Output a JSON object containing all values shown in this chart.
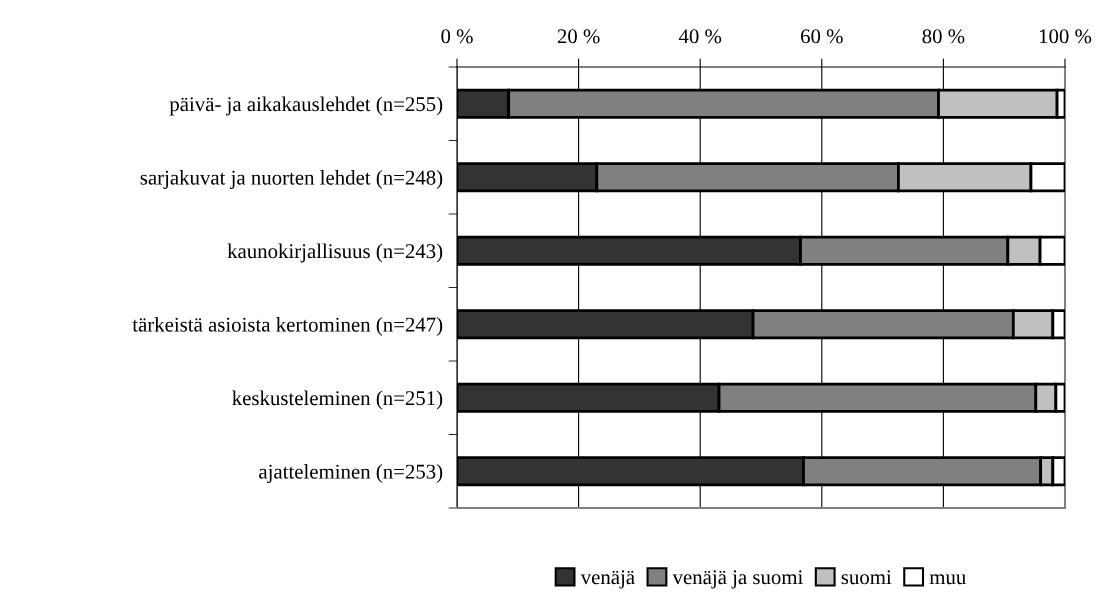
{
  "chart_data": {
    "type": "bar",
    "orientation": "horizontal",
    "stacked": true,
    "categories": [
      "päivä- ja aikakauslehdet (n=255)",
      "sarjakuvat ja nuorten lehdet (n=248)",
      "kaunokirjallisuus (n=243)",
      "tärkeistä asioista kertominen (n=247)",
      "keskusteleminen (n=251)",
      "ajatteleminen (n=253)"
    ],
    "series": [
      {
        "name": "venäjä",
        "color": "#333333",
        "values": [
          8.5,
          23.0,
          56.5,
          48.7,
          43.1,
          57.0
        ]
      },
      {
        "name": "venäjä ja suomi",
        "color": "#808080",
        "values": [
          70.7,
          49.6,
          34.1,
          42.8,
          52.1,
          39.0
        ]
      },
      {
        "name": "suomi",
        "color": "#c0c0c0",
        "values": [
          19.5,
          21.8,
          5.3,
          6.5,
          3.3,
          2.0
        ]
      },
      {
        "name": "muu",
        "color": "#ffffff",
        "values": [
          1.3,
          5.6,
          4.1,
          2.0,
          1.5,
          2.0
        ]
      }
    ],
    "xlim": [
      0,
      100
    ],
    "xticks": [
      {
        "value": 0,
        "label": "0 %"
      },
      {
        "value": 20,
        "label": "20 %"
      },
      {
        "value": 40,
        "label": "40 %"
      },
      {
        "value": 60,
        "label": "60 %"
      },
      {
        "value": 80,
        "label": "80 %"
      },
      {
        "value": 100,
        "label": "100 %"
      }
    ],
    "grid": "x",
    "legend": "bottom"
  }
}
